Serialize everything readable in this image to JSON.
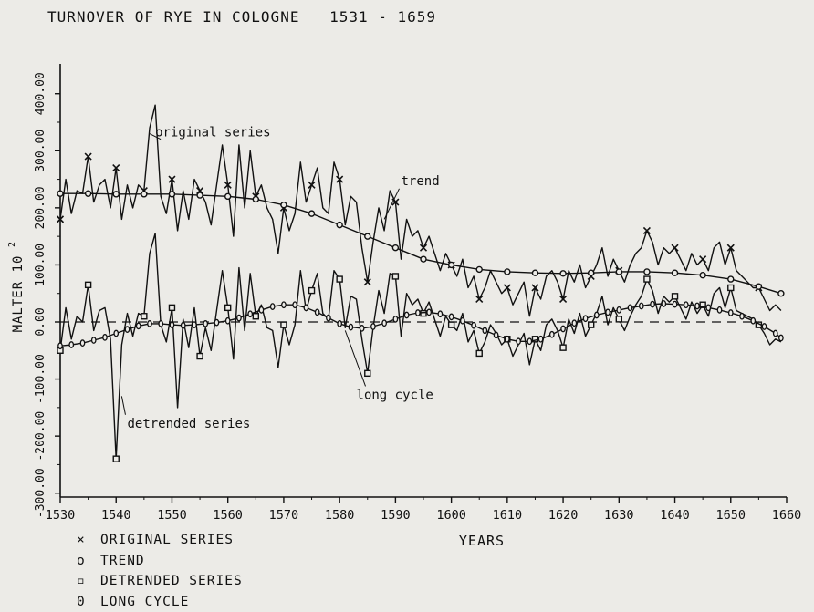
{
  "title": "TURNOVER OF RYE IN COLOGNE",
  "title_years": "1531 - 1659",
  "legend": [
    {
      "symbol": "×",
      "label": "ORIGINAL SERIES"
    },
    {
      "symbol": "o",
      "label": "TREND"
    },
    {
      "symbol": "▫",
      "label": "DETRENDED SERIES"
    },
    {
      "symbol": "0",
      "label": "LONG CYCLE"
    }
  ],
  "chart_data": {
    "type": "line",
    "title": "TURNOVER OF RYE IN COLOGNE 1531 - 1659",
    "xlabel": "YEARS",
    "ylabel": "MALTER 10",
    "ylabel_superscript": "2",
    "xlim": [
      1530,
      1660
    ],
    "ylim": [
      -300,
      430
    ],
    "x_ticks": [
      1530,
      1540,
      1550,
      1560,
      1570,
      1580,
      1590,
      1600,
      1610,
      1620,
      1630,
      1640,
      1650,
      1660
    ],
    "x_tick_labels": [
      "1530",
      "1540",
      "1550",
      "1560",
      "1570",
      "1580",
      "1590",
      "1600",
      "1610",
      "1620",
      "1630",
      "1640",
      "1650",
      "1660"
    ],
    "y_ticks": [
      400,
      300,
      200,
      100,
      0,
      -100,
      -200,
      -300
    ],
    "y_tick_labels": [
      "400.00",
      "300.00",
      "200.00",
      "100.00",
      "0.00",
      "-100.00",
      "-200.00",
      "-300.00"
    ],
    "zero_line": "dashed",
    "annotations": [
      {
        "text": "original series",
        "x": 1547,
        "y": 325
      },
      {
        "text": "trend",
        "x": 1591,
        "y": 240
      },
      {
        "text": "long cycle",
        "x": 1583,
        "y": -135
      },
      {
        "text": "detrended series",
        "x": 1542,
        "y": -185
      }
    ],
    "series": [
      {
        "name": "original series",
        "marker": "x",
        "x": [
          1530,
          1531,
          1532,
          1533,
          1534,
          1535,
          1536,
          1537,
          1538,
          1539,
          1540,
          1541,
          1542,
          1543,
          1544,
          1545,
          1546,
          1547,
          1548,
          1549,
          1550,
          1551,
          1552,
          1553,
          1554,
          1555,
          1556,
          1557,
          1558,
          1559,
          1560,
          1561,
          1562,
          1563,
          1564,
          1565,
          1566,
          1567,
          1568,
          1569,
          1570,
          1571,
          1572,
          1573,
          1574,
          1575,
          1576,
          1577,
          1578,
          1579,
          1580,
          1581,
          1582,
          1583,
          1584,
          1585,
          1586,
          1587,
          1588,
          1589,
          1590,
          1591,
          1592,
          1593,
          1594,
          1595,
          1596,
          1597,
          1598,
          1599,
          1600,
          1601,
          1602,
          1603,
          1604,
          1605,
          1606,
          1607,
          1608,
          1609,
          1610,
          1611,
          1612,
          1613,
          1614,
          1615,
          1616,
          1617,
          1618,
          1619,
          1620,
          1621,
          1622,
          1623,
          1624,
          1625,
          1626,
          1627,
          1628,
          1629,
          1630,
          1631,
          1632,
          1633,
          1634,
          1635,
          1636,
          1637,
          1638,
          1639,
          1640,
          1641,
          1642,
          1643,
          1644,
          1645,
          1646,
          1647,
          1648,
          1649,
          1650,
          1651,
          1652,
          1653,
          1654,
          1655,
          1656,
          1657,
          1658,
          1659
        ],
        "y": [
          180,
          250,
          190,
          230,
          225,
          290,
          210,
          240,
          250,
          200,
          270,
          180,
          240,
          200,
          240,
          230,
          340,
          380,
          220,
          190,
          250,
          160,
          230,
          180,
          250,
          230,
          210,
          170,
          240,
          310,
          240,
          150,
          310,
          200,
          300,
          220,
          240,
          200,
          180,
          120,
          200,
          160,
          190,
          280,
          210,
          240,
          270,
          200,
          190,
          280,
          250,
          170,
          220,
          210,
          130,
          70,
          140,
          200,
          160,
          230,
          210,
          110,
          180,
          150,
          160,
          130,
          150,
          120,
          90,
          120,
          100,
          80,
          110,
          60,
          80,
          40,
          60,
          90,
          70,
          50,
          60,
          30,
          50,
          70,
          10,
          60,
          40,
          80,
          90,
          70,
          40,
          90,
          70,
          100,
          60,
          80,
          100,
          130,
          80,
          110,
          90,
          70,
          100,
          120,
          130,
          160,
          140,
          100,
          130,
          120,
          130,
          110,
          90,
          120,
          100,
          110,
          90,
          130,
          140,
          100,
          130,
          90,
          80,
          70,
          60,
          60,
          40,
          20,
          30,
          20
        ]
      },
      {
        "name": "trend",
        "marker": "o",
        "x": [
          1530,
          1535,
          1540,
          1545,
          1550,
          1555,
          1560,
          1565,
          1570,
          1575,
          1580,
          1585,
          1590,
          1595,
          1600,
          1605,
          1610,
          1615,
          1620,
          1625,
          1630,
          1635,
          1640,
          1645,
          1650,
          1655,
          1659
        ],
        "y": [
          225,
          225,
          224,
          224,
          224,
          222,
          220,
          215,
          205,
          190,
          170,
          150,
          130,
          110,
          100,
          92,
          88,
          86,
          85,
          86,
          88,
          88,
          86,
          82,
          75,
          62,
          50
        ]
      },
      {
        "name": "detrended series",
        "marker": "square",
        "x": [
          1530,
          1531,
          1532,
          1533,
          1534,
          1535,
          1536,
          1537,
          1538,
          1539,
          1540,
          1541,
          1542,
          1543,
          1544,
          1545,
          1546,
          1547,
          1548,
          1549,
          1550,
          1551,
          1552,
          1553,
          1554,
          1555,
          1556,
          1557,
          1558,
          1559,
          1560,
          1561,
          1562,
          1563,
          1564,
          1565,
          1566,
          1567,
          1568,
          1569,
          1570,
          1571,
          1572,
          1573,
          1574,
          1575,
          1576,
          1577,
          1578,
          1579,
          1580,
          1581,
          1582,
          1583,
          1584,
          1585,
          1586,
          1587,
          1588,
          1589,
          1590,
          1591,
          1592,
          1593,
          1594,
          1595,
          1596,
          1597,
          1598,
          1599,
          1600,
          1601,
          1602,
          1603,
          1604,
          1605,
          1606,
          1607,
          1608,
          1609,
          1610,
          1611,
          1612,
          1613,
          1614,
          1615,
          1616,
          1617,
          1618,
          1619,
          1620,
          1621,
          1622,
          1623,
          1624,
          1625,
          1626,
          1627,
          1628,
          1629,
          1630,
          1631,
          1632,
          1633,
          1634,
          1635,
          1636,
          1637,
          1638,
          1639,
          1640,
          1641,
          1642,
          1643,
          1644,
          1645,
          1646,
          1647,
          1648,
          1649,
          1650,
          1651,
          1652,
          1653,
          1654,
          1655,
          1656,
          1657,
          1658,
          1659
        ],
        "y": [
          -50,
          25,
          -30,
          10,
          0,
          65,
          -15,
          20,
          25,
          -30,
          -240,
          -40,
          15,
          -25,
          15,
          10,
          120,
          155,
          -5,
          -35,
          25,
          -150,
          5,
          -45,
          25,
          -60,
          -10,
          -50,
          20,
          90,
          25,
          -65,
          95,
          -15,
          85,
          10,
          30,
          -10,
          -15,
          -80,
          -5,
          -40,
          -5,
          90,
          20,
          55,
          85,
          15,
          5,
          90,
          75,
          -10,
          45,
          40,
          -30,
          -90,
          -10,
          55,
          15,
          85,
          80,
          -25,
          50,
          30,
          40,
          15,
          35,
          5,
          -25,
          10,
          -5,
          -15,
          15,
          -35,
          -15,
          -55,
          -35,
          -5,
          -20,
          -40,
          -30,
          -60,
          -40,
          -20,
          -75,
          -30,
          -50,
          -5,
          5,
          -15,
          -45,
          5,
          -20,
          15,
          -25,
          -5,
          15,
          45,
          -5,
          25,
          5,
          -15,
          10,
          30,
          45,
          75,
          55,
          15,
          45,
          35,
          45,
          25,
          5,
          35,
          15,
          30,
          10,
          50,
          60,
          25,
          60,
          20,
          15,
          10,
          5,
          -5,
          -20,
          -40,
          -30,
          -35
        ]
      },
      {
        "name": "long cycle",
        "marker": "0",
        "x": [
          1530,
          1532,
          1534,
          1536,
          1538,
          1540,
          1542,
          1544,
          1546,
          1548,
          1550,
          1552,
          1554,
          1556,
          1558,
          1560,
          1562,
          1564,
          1566,
          1568,
          1570,
          1572,
          1574,
          1576,
          1578,
          1580,
          1582,
          1584,
          1586,
          1588,
          1590,
          1592,
          1594,
          1596,
          1598,
          1600,
          1602,
          1604,
          1606,
          1608,
          1610,
          1612,
          1614,
          1616,
          1618,
          1620,
          1622,
          1624,
          1626,
          1628,
          1630,
          1632,
          1634,
          1636,
          1638,
          1640,
          1642,
          1644,
          1646,
          1648,
          1650,
          1652,
          1654,
          1656,
          1658,
          1659
        ],
        "y": [
          -42,
          -40,
          -37,
          -32,
          -27,
          -20,
          -13,
          -7,
          -3,
          -3,
          -5,
          -6,
          -5,
          -3,
          -1,
          2,
          7,
          14,
          21,
          27,
          30,
          30,
          25,
          17,
          7,
          -3,
          -9,
          -11,
          -8,
          -2,
          5,
          12,
          16,
          17,
          14,
          9,
          2,
          -6,
          -15,
          -23,
          -30,
          -34,
          -34,
          -30,
          -22,
          -12,
          -2,
          6,
          12,
          17,
          21,
          25,
          28,
          31,
          32,
          31,
          30,
          28,
          25,
          21,
          16,
          10,
          2,
          -8,
          -20,
          -28
        ]
      }
    ]
  }
}
